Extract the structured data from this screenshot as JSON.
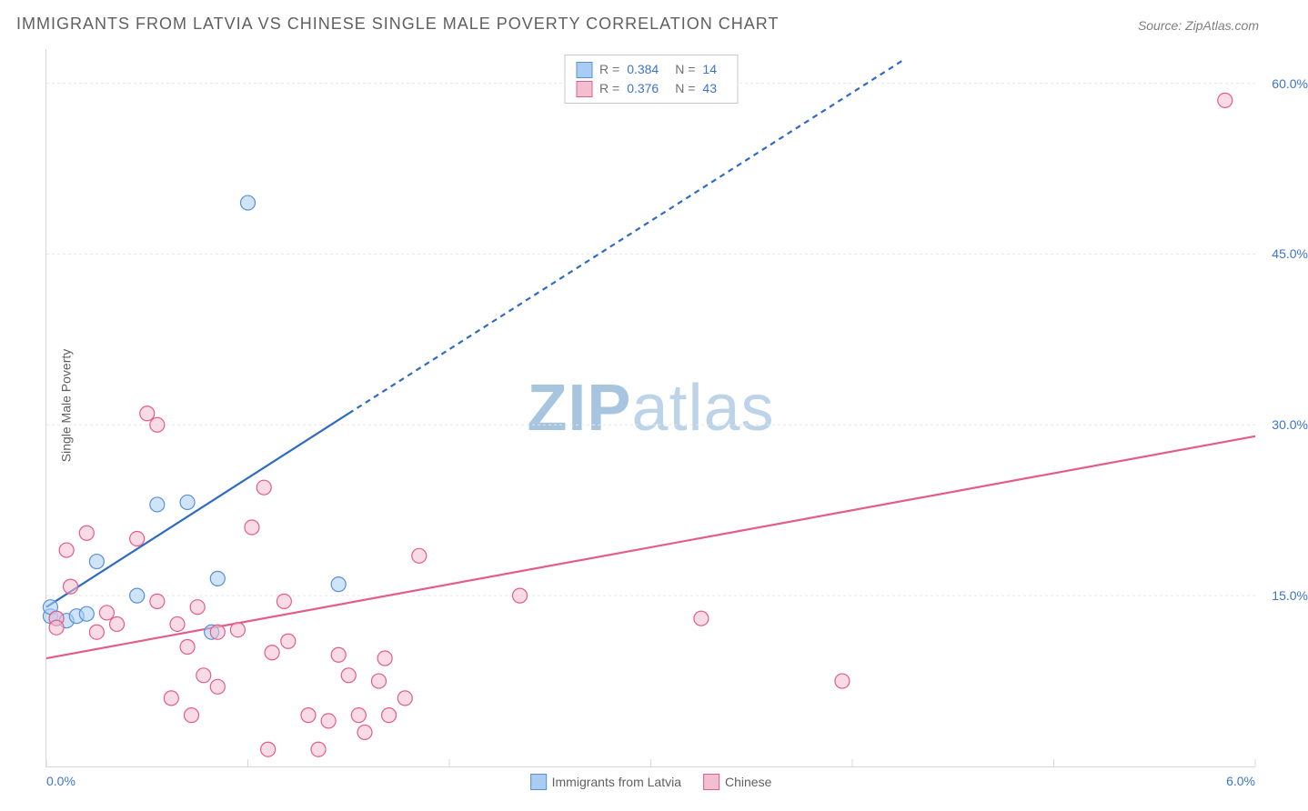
{
  "title": "IMMIGRANTS FROM LATVIA VS CHINESE SINGLE MALE POVERTY CORRELATION CHART",
  "source_label": "Source: ZipAtlas.com",
  "ylabel": "Single Male Poverty",
  "watermark": {
    "bold": "ZIP",
    "light": "atlas"
  },
  "chart": {
    "type": "scatter",
    "background_color": "#ffffff",
    "grid_color": "#e6e6e6",
    "axis_color": "#d8d8d8",
    "tick_label_color": "#3e74c8",
    "tick_fontsize": 14,
    "title_fontsize": 18,
    "title_color": "#606060",
    "xlim": [
      0,
      6
    ],
    "ylim": [
      0,
      63
    ],
    "xticks": [
      0,
      1,
      2,
      3,
      4,
      5,
      6
    ],
    "xtick_labels_shown": {
      "0": "0.0%",
      "6": "6.0%"
    },
    "yticks": [
      15,
      30,
      45,
      60
    ],
    "ytick_labels": {
      "15": "15.0%",
      "30": "30.0%",
      "45": "45.0%",
      "60": "60.0%"
    },
    "marker_radius": 8,
    "marker_opacity": 0.55,
    "series": [
      {
        "name": "Immigrants from Latvia",
        "color_fill": "#a9cdf2",
        "color_stroke": "#5b90d6",
        "regression": {
          "solid_from_x": 0,
          "solid_to_x": 1.5,
          "dashed_to_x": 4.25,
          "y_at_x0": 14,
          "y_at_x1_5": 31,
          "y_at_x4_25": 62,
          "stroke": "#2f6bc0",
          "width": 2.2,
          "dash": "6,5"
        },
        "R": 0.384,
        "N": 14,
        "points": [
          {
            "x": 0.02,
            "y": 13.2
          },
          {
            "x": 0.02,
            "y": 14.0
          },
          {
            "x": 0.05,
            "y": 13.0
          },
          {
            "x": 0.1,
            "y": 12.8
          },
          {
            "x": 0.15,
            "y": 13.2
          },
          {
            "x": 0.2,
            "y": 13.4
          },
          {
            "x": 0.25,
            "y": 18.0
          },
          {
            "x": 0.45,
            "y": 15.0
          },
          {
            "x": 0.55,
            "y": 23.0
          },
          {
            "x": 0.7,
            "y": 23.2
          },
          {
            "x": 0.82,
            "y": 11.8
          },
          {
            "x": 0.85,
            "y": 16.5
          },
          {
            "x": 1.0,
            "y": 49.5
          },
          {
            "x": 1.45,
            "y": 16.0
          }
        ]
      },
      {
        "name": "Chinese",
        "color_fill": "#f3bed0",
        "color_stroke": "#e45d8a",
        "regression": {
          "solid_from_x": 0,
          "solid_to_x": 6.0,
          "y_at_x0": 9.5,
          "y_at_x6": 29,
          "stroke": "#e45d8a",
          "width": 2.2
        },
        "R": 0.376,
        "N": 43,
        "points": [
          {
            "x": 0.05,
            "y": 13.0
          },
          {
            "x": 0.05,
            "y": 12.2
          },
          {
            "x": 0.1,
            "y": 19.0
          },
          {
            "x": 0.12,
            "y": 15.8
          },
          {
            "x": 0.2,
            "y": 20.5
          },
          {
            "x": 0.25,
            "y": 11.8
          },
          {
            "x": 0.3,
            "y": 13.5
          },
          {
            "x": 0.35,
            "y": 12.5
          },
          {
            "x": 0.45,
            "y": 20.0
          },
          {
            "x": 0.5,
            "y": 31.0
          },
          {
            "x": 0.55,
            "y": 30.0
          },
          {
            "x": 0.55,
            "y": 14.5
          },
          {
            "x": 0.62,
            "y": 6.0
          },
          {
            "x": 0.65,
            "y": 12.5
          },
          {
            "x": 0.7,
            "y": 10.5
          },
          {
            "x": 0.72,
            "y": 4.5
          },
          {
            "x": 0.75,
            "y": 14.0
          },
          {
            "x": 0.78,
            "y": 8.0
          },
          {
            "x": 0.85,
            "y": 11.8
          },
          {
            "x": 0.85,
            "y": 7.0
          },
          {
            "x": 0.95,
            "y": 12.0
          },
          {
            "x": 1.02,
            "y": 21.0
          },
          {
            "x": 1.08,
            "y": 24.5
          },
          {
            "x": 1.1,
            "y": 1.5
          },
          {
            "x": 1.12,
            "y": 10.0
          },
          {
            "x": 1.18,
            "y": 14.5
          },
          {
            "x": 1.2,
            "y": 11.0
          },
          {
            "x": 1.3,
            "y": 4.5
          },
          {
            "x": 1.35,
            "y": 1.5
          },
          {
            "x": 1.4,
            "y": 4.0
          },
          {
            "x": 1.45,
            "y": 9.8
          },
          {
            "x": 1.5,
            "y": 8.0
          },
          {
            "x": 1.55,
            "y": 4.5
          },
          {
            "x": 1.58,
            "y": 3.0
          },
          {
            "x": 1.65,
            "y": 7.5
          },
          {
            "x": 1.68,
            "y": 9.5
          },
          {
            "x": 1.7,
            "y": 4.5
          },
          {
            "x": 1.78,
            "y": 6.0
          },
          {
            "x": 1.85,
            "y": 18.5
          },
          {
            "x": 2.35,
            "y": 15.0
          },
          {
            "x": 3.25,
            "y": 13.0
          },
          {
            "x": 3.95,
            "y": 7.5
          },
          {
            "x": 5.85,
            "y": 58.5
          }
        ]
      }
    ],
    "legend_top": {
      "border_color": "#c8c8c8",
      "rows": [
        {
          "swatch_fill": "#a9cdf2",
          "swatch_stroke": "#5b90d6",
          "r_label": "R =",
          "r_val": "0.384",
          "n_label": "N =",
          "n_val": "14"
        },
        {
          "swatch_fill": "#f3bed0",
          "swatch_stroke": "#e45d8a",
          "r_label": "R =",
          "r_val": "0.376",
          "n_label": "N =",
          "n_val": "43"
        }
      ]
    },
    "legend_bottom": [
      {
        "swatch_fill": "#a9cdf2",
        "swatch_stroke": "#5b90d6",
        "label": "Immigrants from Latvia"
      },
      {
        "swatch_fill": "#f3bed0",
        "swatch_stroke": "#e45d8a",
        "label": "Chinese"
      }
    ]
  }
}
